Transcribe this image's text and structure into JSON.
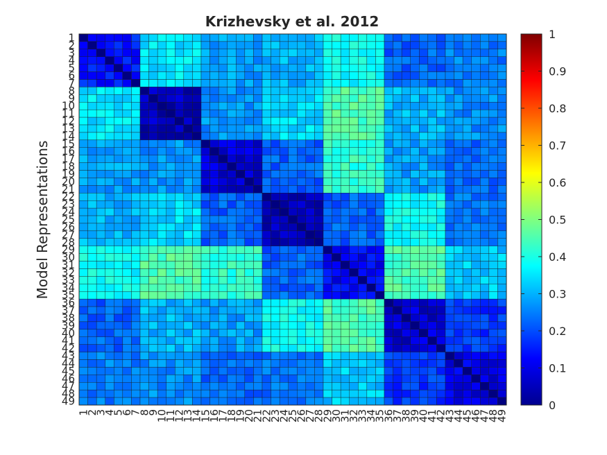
{
  "chart_data": {
    "type": "heatmap",
    "title": "Krizhevsky et al. 2012",
    "ylabel": "Model Representations",
    "xlabel": "",
    "n": 49,
    "row_labels": [
      "1",
      "2",
      "3",
      "4",
      "5",
      "6",
      "7",
      "8",
      "9",
      "10",
      "11",
      "12",
      "13",
      "14",
      "15",
      "16",
      "17",
      "18",
      "19",
      "20",
      "21",
      "22",
      "23",
      "24",
      "25",
      "26",
      "27",
      "28",
      "29",
      "30",
      "31",
      "32",
      "33",
      "34",
      "35",
      "36",
      "37",
      "38",
      "39",
      "40",
      "41",
      "42",
      "43",
      "44",
      "45",
      "46",
      "47",
      "48",
      "49"
    ],
    "col_labels": [
      "1",
      "2",
      "3",
      "4",
      "5",
      "6",
      "7",
      "8",
      "9",
      "10",
      "11",
      "12",
      "13",
      "14",
      "15",
      "16",
      "17",
      "18",
      "19",
      "20",
      "21",
      "22",
      "23",
      "24",
      "25",
      "26",
      "27",
      "28",
      "29",
      "30",
      "31",
      "32",
      "33",
      "34",
      "35",
      "36",
      "37",
      "38",
      "39",
      "40",
      "41",
      "42",
      "43",
      "44",
      "45",
      "46",
      "47",
      "48",
      "49"
    ],
    "groups": [
      {
        "start": 1,
        "end": 7
      },
      {
        "start": 8,
        "end": 14
      },
      {
        "start": 15,
        "end": 21
      },
      {
        "start": 22,
        "end": 28
      },
      {
        "start": 29,
        "end": 35
      },
      {
        "start": 36,
        "end": 42
      },
      {
        "start": 43,
        "end": 49
      }
    ],
    "block_values": [
      [
        0.15,
        0.35,
        0.28,
        0.3,
        0.38,
        0.22,
        0.25
      ],
      [
        0.35,
        0.06,
        0.27,
        0.34,
        0.45,
        0.3,
        0.26
      ],
      [
        0.28,
        0.27,
        0.08,
        0.22,
        0.42,
        0.28,
        0.22
      ],
      [
        0.3,
        0.34,
        0.22,
        0.05,
        0.22,
        0.38,
        0.24
      ],
      [
        0.38,
        0.45,
        0.42,
        0.22,
        0.12,
        0.45,
        0.32
      ],
      [
        0.22,
        0.3,
        0.28,
        0.38,
        0.45,
        0.08,
        0.18
      ],
      [
        0.25,
        0.26,
        0.22,
        0.24,
        0.32,
        0.18,
        0.1
      ]
    ],
    "diagonal_value": 0,
    "colorbar": {
      "colormap": "jet",
      "min": 0,
      "max": 1,
      "ticks": [
        "0",
        "0.1",
        "0.2",
        "0.3",
        "0.4",
        "0.5",
        "0.6",
        "0.7",
        "0.8",
        "0.9",
        "1"
      ]
    },
    "grid": true
  }
}
